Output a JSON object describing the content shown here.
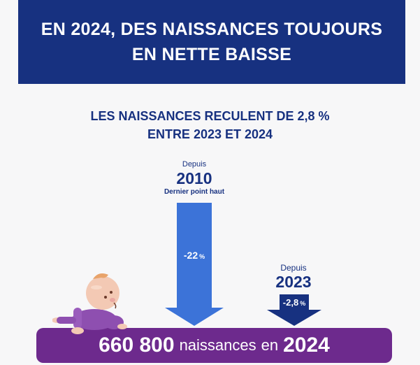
{
  "header": {
    "line1": "EN 2024, DES NAISSANCES TOUJOURS",
    "line2": "EN NETTE BAISSE"
  },
  "subtitle": {
    "line1": "LES NAISSANCES RECULENT DE 2,8 %",
    "line2": "ENTRE 2023 ET 2024"
  },
  "arrow_2010": {
    "depuis": "Depuis",
    "year": "2010",
    "note": "Dernier point haut",
    "pct_value": "-22",
    "pct_sign": "%",
    "color": "#3c73d8"
  },
  "arrow_2023": {
    "depuis": "Depuis",
    "year": "2023",
    "pct_value": "-2,8",
    "pct_sign": "%",
    "color": "#173180"
  },
  "banner": {
    "count": "660 800",
    "text1": "naissances",
    "text2": "en",
    "year": "2024",
    "color": "#6d2a8d"
  },
  "colors": {
    "navy": "#173180",
    "blue": "#3c73d8",
    "purple": "#6d2a8d",
    "background": "#f7f7f8"
  },
  "icons": {
    "baby": "crawling-baby-icon"
  }
}
